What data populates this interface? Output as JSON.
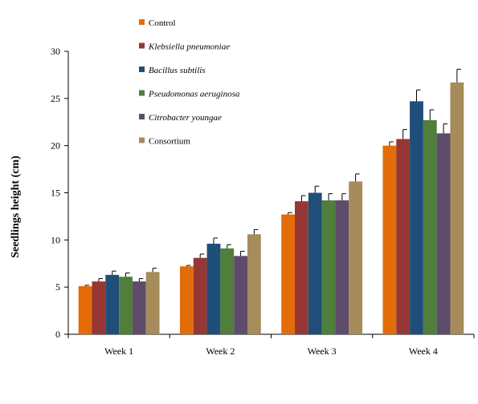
{
  "chart_data": {
    "type": "bar",
    "title": "",
    "xlabel": "",
    "ylabel": "Seedlings height (cm)",
    "ylim": [
      0,
      30
    ],
    "yticks": [
      "0",
      "5",
      "10",
      "15",
      "20",
      "25",
      "30"
    ],
    "grid": false,
    "legend_position": "top-left",
    "categories": [
      "Week 1",
      "Week 2",
      "Week 3",
      "Week 4"
    ],
    "series": [
      {
        "name": "Control",
        "italic": false,
        "color": "#E36C09",
        "values": [
          5.1,
          7.2,
          12.7,
          20.0
        ],
        "errors": [
          0.1,
          0.1,
          0.2,
          0.4
        ]
      },
      {
        "name": "Klebsiella pneumoniae",
        "italic": true,
        "color": "#953735",
        "values": [
          5.6,
          8.1,
          14.1,
          20.7
        ],
        "errors": [
          0.3,
          0.4,
          0.6,
          1.0
        ]
      },
      {
        "name": "Bacillus subtilis",
        "italic": true,
        "color": "#1F4E79",
        "values": [
          6.3,
          9.6,
          15.0,
          24.7
        ],
        "errors": [
          0.4,
          0.6,
          0.7,
          1.2
        ]
      },
      {
        "name": "Pseudomonas aeruginosa",
        "italic": true,
        "color": "#4F7F3A",
        "values": [
          6.1,
          9.1,
          14.2,
          22.7
        ],
        "errors": [
          0.4,
          0.4,
          0.7,
          1.1
        ]
      },
      {
        "name": "Citrobacter youngae",
        "italic": true,
        "color": "#5F4B6B",
        "values": [
          5.6,
          8.3,
          14.2,
          21.3
        ],
        "errors": [
          0.3,
          0.5,
          0.7,
          1.0
        ]
      },
      {
        "name": "Consortium",
        "italic": false,
        "color": "#A68B5B",
        "values": [
          6.6,
          10.6,
          16.2,
          26.7
        ],
        "errors": [
          0.4,
          0.5,
          0.8,
          1.4
        ]
      }
    ]
  }
}
